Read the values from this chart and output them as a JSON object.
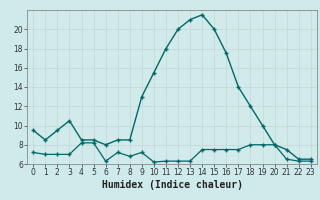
{
  "xlabel": "Humidex (Indice chaleur)",
  "background_color": "#ceeaea",
  "grid_major_color": "#c8d8d8",
  "grid_minor_color": "#ddeaea",
  "line_color": "#006868",
  "upper_x": [
    0,
    1,
    2,
    3,
    4,
    5,
    6,
    7,
    8,
    9,
    10,
    11,
    12,
    13,
    14,
    15,
    16,
    17,
    18,
    19,
    20,
    21,
    22,
    23
  ],
  "upper_y": [
    9.5,
    8.5,
    9.5,
    10.5,
    8.5,
    8.5,
    8.0,
    8.5,
    8.5,
    13.0,
    15.5,
    18.0,
    20.0,
    21.0,
    21.5,
    20.0,
    17.5,
    14.0,
    12.0,
    10.0,
    8.0,
    7.5,
    6.5,
    6.5
  ],
  "lower_x": [
    0,
    1,
    2,
    3,
    4,
    5,
    6,
    7,
    8,
    9,
    10,
    11,
    12,
    13,
    14,
    15,
    16,
    17,
    18,
    19,
    20,
    21,
    22,
    23
  ],
  "lower_y": [
    7.2,
    7.0,
    7.0,
    7.0,
    8.2,
    8.2,
    6.3,
    7.2,
    6.8,
    7.2,
    6.2,
    6.3,
    6.3,
    6.3,
    7.5,
    7.5,
    7.5,
    7.5,
    8.0,
    8.0,
    8.0,
    6.5,
    6.3,
    6.3
  ],
  "ylim": [
    6,
    22
  ],
  "yticks": [
    6,
    8,
    10,
    12,
    14,
    16,
    18,
    20
  ],
  "xlim": [
    -0.5,
    23.5
  ],
  "xticks": [
    0,
    1,
    2,
    3,
    4,
    5,
    6,
    7,
    8,
    9,
    10,
    11,
    12,
    13,
    14,
    15,
    16,
    17,
    18,
    19,
    20,
    21,
    22,
    23
  ],
  "tick_fontsize": 5.5,
  "xlabel_fontsize": 7,
  "marker_size": 3.5,
  "linewidth_upper": 1.0,
  "linewidth_lower": 0.9
}
